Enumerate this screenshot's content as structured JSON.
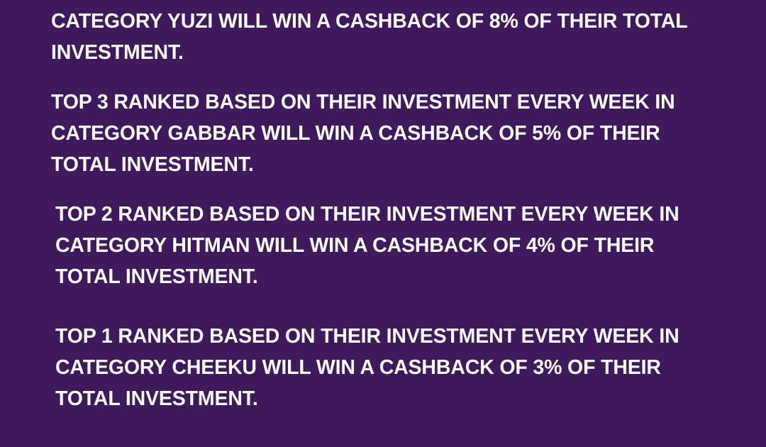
{
  "background_color": "#3e1a5c",
  "text_color": "#ffffff",
  "paragraphs": [
    {
      "lines": [
        "CATEGORY YUZI WILL WIN A CASHBACK OF 8% OF THEIR TOTAL",
        "INVESTMENT."
      ]
    },
    {
      "lines": [
        "TOP 3 RANKED BASED ON THEIR INVESTMENT EVERY WEEK IN",
        "CATEGORY GABBAR WILL WIN A CASHBACK OF 5% OF THEIR",
        "TOTAL INVESTMENT."
      ]
    },
    {
      "lines": [
        "TOP 2 RANKED BASED ON THEIR INVESTMENT EVERY WEEK IN",
        "CATEGORY HITMAN WILL WIN A CASHBACK OF 4% OF THEIR",
        "TOTAL INVESTMENT."
      ]
    },
    {
      "lines": [
        "TOP 1 RANKED BASED ON THEIR INVESTMENT EVERY WEEK IN",
        "CATEGORY CHEEKU WILL WIN A CASHBACK OF 3% OF THEIR",
        "TOTAL INVESTMENT."
      ]
    }
  ]
}
